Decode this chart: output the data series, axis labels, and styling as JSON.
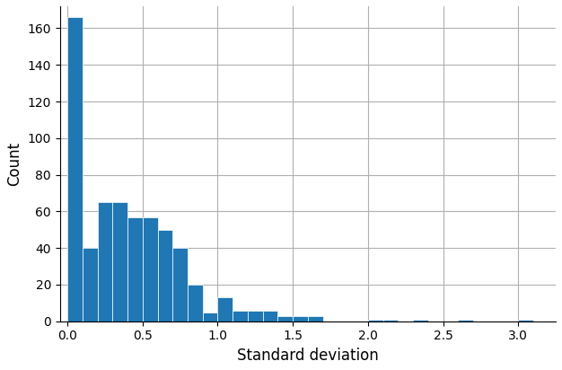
{
  "bar_heights": [
    166,
    40,
    65,
    65,
    57,
    57,
    50,
    40,
    20,
    5,
    13,
    6,
    6,
    6,
    3,
    3,
    3,
    0,
    0,
    0,
    1,
    1,
    0,
    1,
    0,
    0,
    1,
    0,
    0,
    0,
    1
  ],
  "bin_width": 0.1,
  "bin_start": 0.0,
  "bar_color": "#1f77b4",
  "bar_edgecolor": "white",
  "xlabel": "Standard deviation",
  "ylabel": "Count",
  "xlim": [
    -0.05,
    3.25
  ],
  "ylim": [
    0,
    172
  ],
  "yticks": [
    0,
    20,
    40,
    60,
    80,
    100,
    120,
    140,
    160
  ],
  "xticks": [
    0.0,
    0.5,
    1.0,
    1.5,
    2.0,
    2.5,
    3.0
  ],
  "grid_color": "#b0b0b0",
  "grid_linewidth": 0.8,
  "background_color": "#ffffff",
  "xlabel_fontsize": 12,
  "ylabel_fontsize": 12,
  "tick_fontsize": 10
}
